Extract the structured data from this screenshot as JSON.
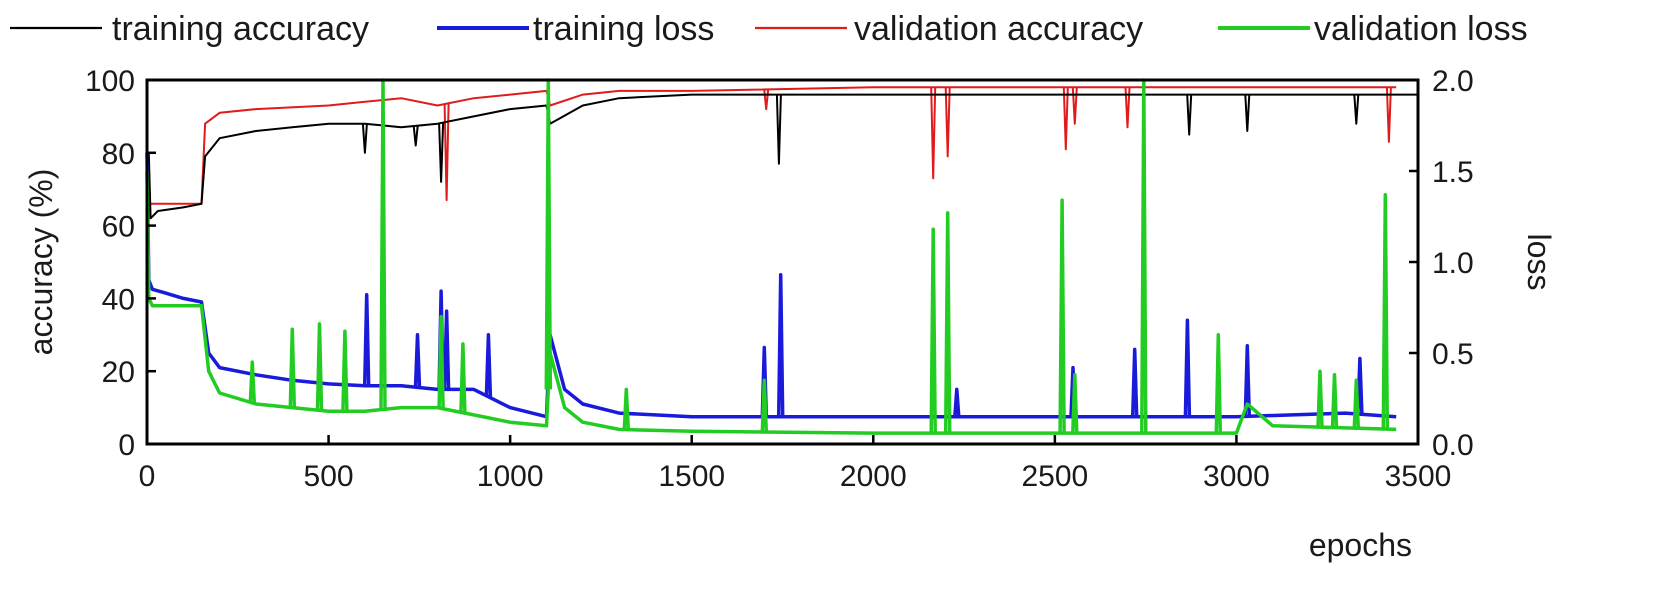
{
  "chart_data": {
    "type": "line",
    "title": "",
    "xlabel": "epochs",
    "ylabel_left": "accuracy (%)",
    "ylabel_right": "loss",
    "xlim": [
      0,
      3500
    ],
    "ylim_left": [
      0,
      100
    ],
    "ylim_right": [
      0,
      2.0
    ],
    "grid": false,
    "legend_position": "top",
    "x_ticks": [
      "0",
      "500",
      "1000",
      "1500",
      "2000",
      "2500",
      "3000",
      "3500"
    ],
    "x_tick_values": [
      0,
      500,
      1000,
      1500,
      2000,
      2500,
      3000,
      3500
    ],
    "y_left_ticks": [
      "0",
      "20",
      "40",
      "60",
      "80",
      "100"
    ],
    "y_left_tick_values": [
      0,
      20,
      40,
      60,
      80,
      100
    ],
    "y_right_ticks": [
      "0.0",
      "0.5",
      "1.0",
      "1.5",
      "2.0"
    ],
    "y_right_tick_values": [
      0,
      0.5,
      1.0,
      1.5,
      2.0
    ],
    "series": [
      {
        "name": "training accuracy",
        "axis": "left",
        "color": "#000000",
        "x": [
          0,
          5,
          10,
          30,
          100,
          150,
          160,
          200,
          300,
          400,
          500,
          600,
          700,
          800,
          900,
          1000,
          1100,
          1110,
          1200,
          1300,
          1500,
          1700,
          2000,
          2500,
          3000,
          3500,
          3440
        ],
        "y": [
          64,
          80,
          62,
          64,
          65,
          66,
          79,
          84,
          86,
          87,
          88,
          88,
          87,
          88,
          90,
          92,
          93,
          88,
          93,
          95,
          96,
          96,
          96,
          96,
          96,
          96,
          96
        ],
        "spikes": [
          {
            "x": 600,
            "y": 80
          },
          {
            "x": 740,
            "y": 82
          },
          {
            "x": 810,
            "y": 72
          },
          {
            "x": 1740,
            "y": 77
          },
          {
            "x": 2870,
            "y": 85
          },
          {
            "x": 3030,
            "y": 86
          },
          {
            "x": 3330,
            "y": 88
          }
        ]
      },
      {
        "name": "training loss",
        "axis": "right",
        "color": "#1a1adb",
        "x": [
          0,
          5,
          15,
          50,
          100,
          150,
          170,
          200,
          300,
          400,
          500,
          600,
          700,
          800,
          900,
          1000,
          1100,
          1110,
          1150,
          1200,
          1300,
          1500,
          2000,
          2500,
          3000,
          3300,
          3440
        ],
        "y": [
          1.6,
          0.9,
          0.85,
          0.83,
          0.8,
          0.78,
          0.5,
          0.42,
          0.38,
          0.35,
          0.33,
          0.32,
          0.32,
          0.3,
          0.3,
          0.2,
          0.15,
          0.6,
          0.3,
          0.22,
          0.17,
          0.15,
          0.15,
          0.15,
          0.15,
          0.17,
          0.15
        ],
        "spikes": [
          {
            "x": 605,
            "y": 0.82
          },
          {
            "x": 745,
            "y": 0.6
          },
          {
            "x": 810,
            "y": 0.84
          },
          {
            "x": 825,
            "y": 0.73
          },
          {
            "x": 940,
            "y": 0.6
          },
          {
            "x": 1700,
            "y": 0.53
          },
          {
            "x": 1745,
            "y": 0.93
          },
          {
            "x": 2230,
            "y": 0.3
          },
          {
            "x": 2550,
            "y": 0.42
          },
          {
            "x": 2720,
            "y": 0.52
          },
          {
            "x": 2865,
            "y": 0.68
          },
          {
            "x": 3030,
            "y": 0.54
          },
          {
            "x": 3340,
            "y": 0.47
          }
        ]
      },
      {
        "name": "validation accuracy",
        "axis": "left",
        "color": "#e01b1b",
        "x": [
          0,
          10,
          50,
          100,
          150,
          160,
          200,
          300,
          500,
          600,
          700,
          800,
          900,
          1000,
          1100,
          1110,
          1200,
          1300,
          1500,
          2000,
          2500,
          3000,
          3440
        ],
        "y": [
          66,
          66,
          66,
          66,
          66,
          88,
          91,
          92,
          93,
          94,
          95,
          93,
          95,
          96,
          97,
          93,
          96,
          97,
          97,
          98,
          98,
          98,
          98
        ],
        "spikes": [
          {
            "x": 825,
            "y": 67
          },
          {
            "x": 1705,
            "y": 92
          },
          {
            "x": 2165,
            "y": 73
          },
          {
            "x": 2205,
            "y": 79
          },
          {
            "x": 2530,
            "y": 81
          },
          {
            "x": 2555,
            "y": 88
          },
          {
            "x": 2700,
            "y": 87
          },
          {
            "x": 3420,
            "y": 83
          }
        ]
      },
      {
        "name": "validation loss",
        "axis": "right",
        "color": "#22cc22",
        "x": [
          0,
          5,
          15,
          50,
          100,
          150,
          170,
          200,
          300,
          400,
          500,
          600,
          700,
          800,
          900,
          1000,
          1100,
          1110,
          1150,
          1200,
          1300,
          1500,
          2000,
          2500,
          3000,
          3030,
          3100,
          3440
        ],
        "y": [
          1.5,
          0.8,
          0.76,
          0.76,
          0.76,
          0.76,
          0.4,
          0.28,
          0.22,
          0.2,
          0.18,
          0.18,
          0.2,
          0.2,
          0.16,
          0.12,
          0.1,
          0.5,
          0.2,
          0.12,
          0.08,
          0.07,
          0.06,
          0.06,
          0.06,
          0.22,
          0.1,
          0.08
        ],
        "spikes": [
          {
            "x": 290,
            "y": 0.45
          },
          {
            "x": 400,
            "y": 0.63
          },
          {
            "x": 475,
            "y": 0.66
          },
          {
            "x": 545,
            "y": 0.62
          },
          {
            "x": 650,
            "y": 2.0
          },
          {
            "x": 810,
            "y": 0.7
          },
          {
            "x": 870,
            "y": 0.55
          },
          {
            "x": 1105,
            "y": 2.0
          },
          {
            "x": 1320,
            "y": 0.3
          },
          {
            "x": 1700,
            "y": 0.35
          },
          {
            "x": 2165,
            "y": 1.18
          },
          {
            "x": 2205,
            "y": 1.27
          },
          {
            "x": 2520,
            "y": 1.34
          },
          {
            "x": 2555,
            "y": 0.38
          },
          {
            "x": 2745,
            "y": 2.0
          },
          {
            "x": 2950,
            "y": 0.6
          },
          {
            "x": 3230,
            "y": 0.4
          },
          {
            "x": 3270,
            "y": 0.38
          },
          {
            "x": 3330,
            "y": 0.35
          },
          {
            "x": 3410,
            "y": 1.37
          }
        ]
      }
    ]
  }
}
